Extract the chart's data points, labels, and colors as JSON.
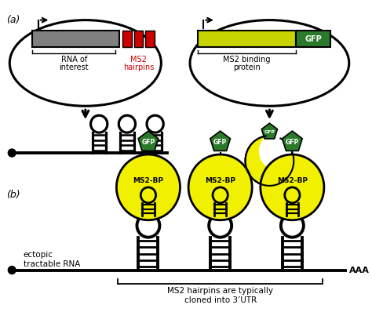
{
  "background_color": "#ffffff",
  "panel_a_label": "(a)",
  "panel_b_label": "(b)",
  "left_construct_label1": "RNA of",
  "left_construct_label2": "interest",
  "left_construct_label3": "MS2",
  "left_construct_label4": "hairpins",
  "right_construct_label1": "MS2 binding",
  "right_construct_label2": "protein",
  "gfp_label": "GFP",
  "ms2bp_label": "MS2-BP",
  "ectopic_label1": "ectopic",
  "ectopic_label2": "tractable RNA",
  "aaa_label": "AAA",
  "bottom_label1": "MS2 hairpins are typically",
  "bottom_label2": "cloned into 3’UTR",
  "gray_color": "#808080",
  "yellow_color": "#f0f000",
  "green_color": "#228B22",
  "red_color": "#cc0000",
  "black_color": "#000000",
  "dark_green": "#2a7a2a",
  "yellow_green": "#c8d400"
}
